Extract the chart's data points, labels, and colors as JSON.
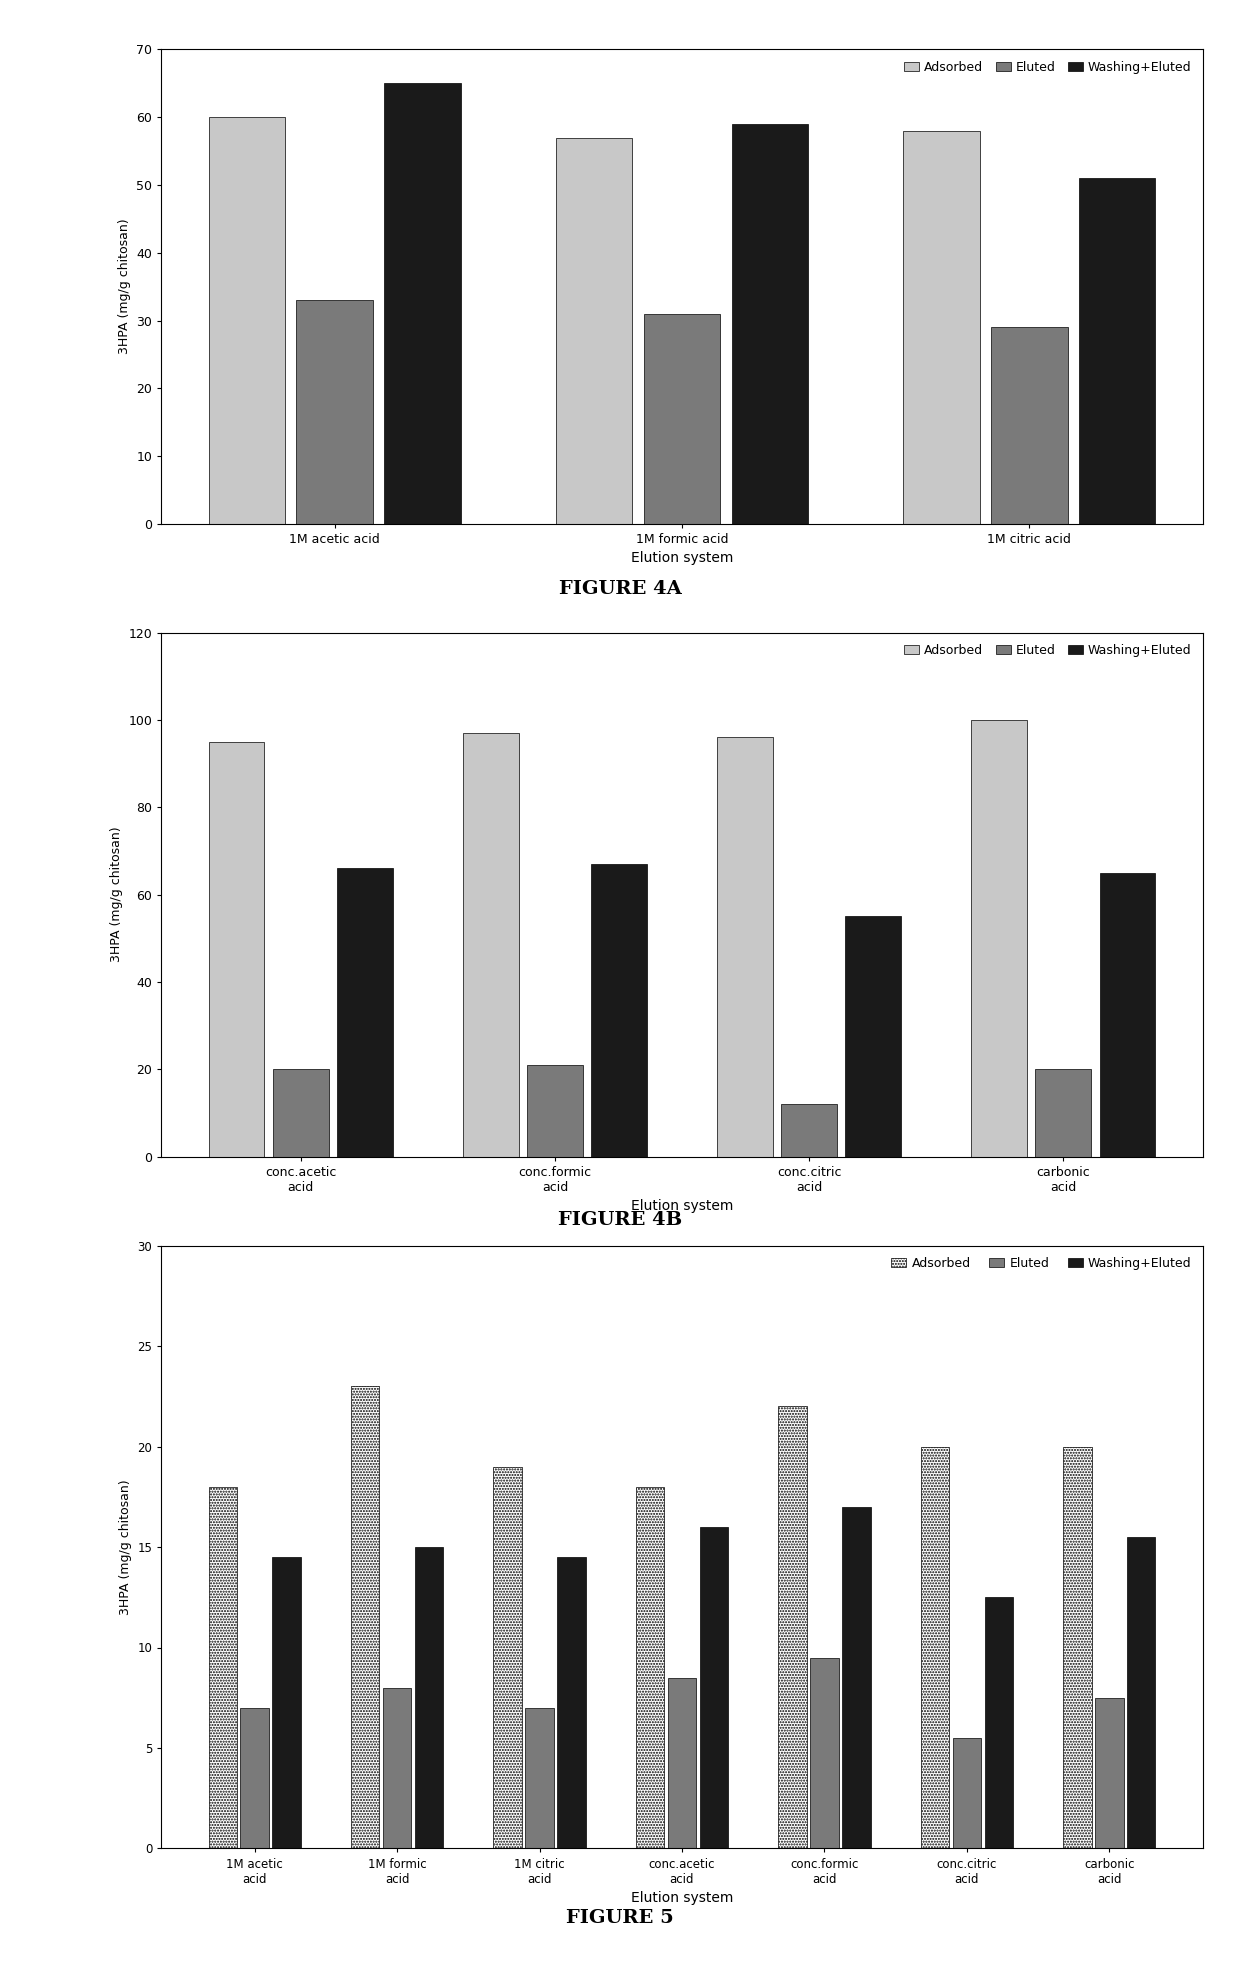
{
  "fig4a": {
    "categories": [
      "1M acetic acid",
      "1M formic acid",
      "1M citric acid"
    ],
    "adsorbed": [
      60,
      57,
      58
    ],
    "eluted": [
      33,
      31,
      29
    ],
    "washing_eluted": [
      65,
      59,
      51
    ],
    "ylim": [
      0,
      70
    ],
    "yticks": [
      0,
      10,
      20,
      30,
      40,
      50,
      60,
      70
    ],
    "ylabel": "3HPA (mg/g chitosan)",
    "xlabel": "Elution system",
    "legend_labels": [
      "Adsorbed",
      "Eluted",
      "Washing+Eluted"
    ]
  },
  "fig4b": {
    "categories": [
      "conc.acetic\nacid",
      "conc.formic\nacid",
      "conc.citric\nacid",
      "carbonic\nacid"
    ],
    "adsorbed": [
      95,
      97,
      96,
      100
    ],
    "eluted": [
      20,
      21,
      12,
      20
    ],
    "washing_eluted": [
      66,
      67,
      55,
      65
    ],
    "ylim": [
      0,
      120
    ],
    "yticks": [
      0,
      20,
      40,
      60,
      80,
      100,
      120
    ],
    "ylabel": "3HPA (mg/g chitosan)",
    "xlabel": "Elution system",
    "legend_labels": [
      "Adsorbed",
      "Eluted",
      "Washing+Eluted"
    ]
  },
  "fig5": {
    "categories": [
      "1M acetic\nacid",
      "1M formic\nacid",
      "1M citric\nacid",
      "conc.acetic\nacid",
      "conc.formic\nacid",
      "conc.citric\nacid",
      "carbonic\nacid"
    ],
    "adsorbed": [
      18,
      23,
      19,
      18,
      22,
      20,
      20
    ],
    "eluted": [
      7,
      8,
      7,
      8.5,
      9.5,
      5.5,
      7.5
    ],
    "washing_eluted": [
      14.5,
      15,
      14.5,
      16,
      17,
      12.5,
      15.5
    ],
    "ylim": [
      0,
      30
    ],
    "yticks": [
      0,
      5,
      10,
      15,
      20,
      25,
      30
    ],
    "ylabel": "3HPA (mg/g chitosan)",
    "xlabel": "Elution system",
    "legend_labels": [
      "Adsorbed",
      "Eluted",
      "Washing+Eluted"
    ]
  },
  "colors": {
    "adsorbed": "#c8c8c8",
    "eluted": "#7a7a7a",
    "washing_eluted": "#1a1a1a"
  },
  "figsize": [
    12.4,
    19.77
  ],
  "dpi": 100
}
